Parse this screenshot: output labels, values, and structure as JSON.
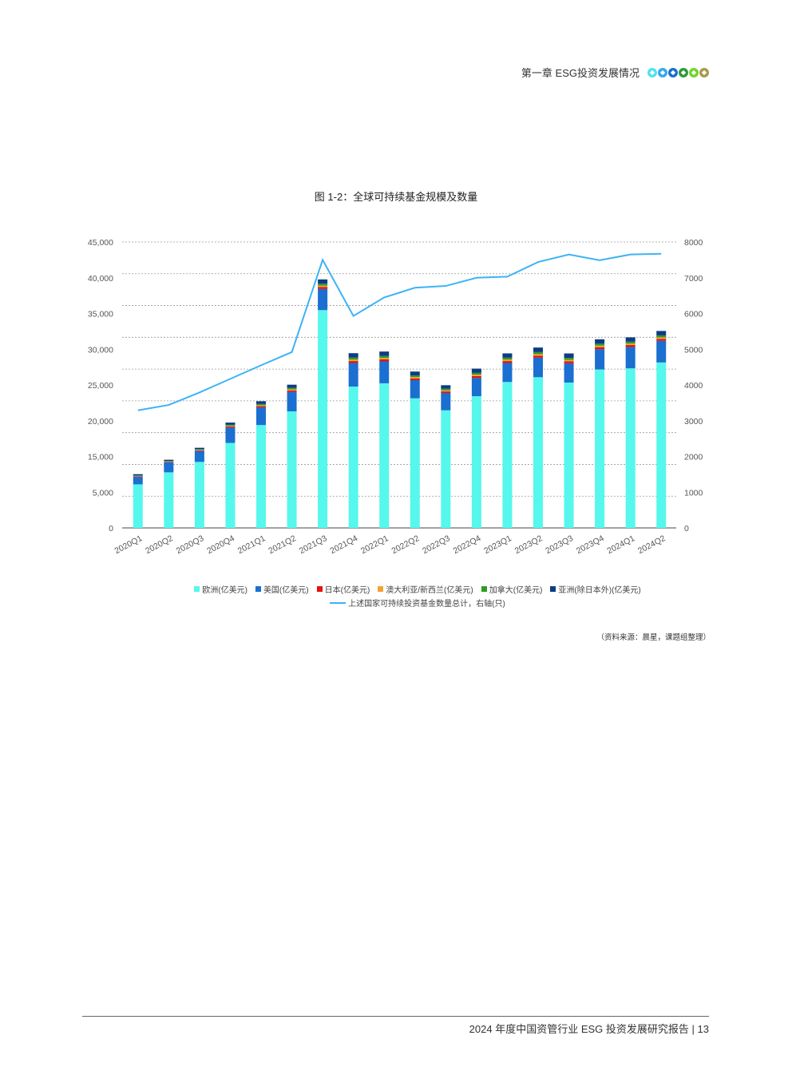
{
  "header": {
    "chapter": "第一章 ESG投资发展情况",
    "dot_colors": [
      "#4fe3f0",
      "#36a9f0",
      "#1a6fd0",
      "#2f9a3a",
      "#6fd62a",
      "#a99a4a"
    ]
  },
  "chart_title": "图 1-2：全球可持续基金规模及数量",
  "chart_data": {
    "type": "bar",
    "stacked": true,
    "title": "图 1-2：全球可持续基金规模及数量",
    "categories": [
      "2020Q1",
      "2020Q2",
      "2020Q3",
      "2020Q4",
      "2021Q1",
      "2021Q2",
      "2021Q3",
      "2021Q4",
      "2022Q1",
      "2022Q2",
      "2022Q3",
      "2022Q4",
      "2023Q1",
      "2023Q2",
      "2023Q3",
      "2023Q4",
      "2024Q1",
      "2024Q2"
    ],
    "left_axis": {
      "ylim": [
        0,
        45000
      ],
      "tick_labels": [
        "0",
        "5,000",
        "15,000",
        "20,000",
        "25,000",
        "30,000",
        "35,000",
        "40,000",
        "45,000"
      ]
    },
    "right_axis": {
      "ylim": [
        0,
        8000
      ],
      "tick_labels": [
        "0",
        "1000",
        "2000",
        "3000",
        "4000",
        "5000",
        "6000",
        "7000",
        "8000"
      ]
    },
    "grid": true,
    "legend_placement": "bottom",
    "series": [
      {
        "name": "欧洲(亿美元)",
        "color": "#56f7ec",
        "values": [
          6860,
          8750,
          10390,
          13380,
          16190,
          18340,
          34280,
          22250,
          22760,
          20400,
          18510,
          20740,
          22970,
          23720,
          22880,
          24940,
          25110,
          26040
        ]
      },
      {
        "name": "美国(亿美元)",
        "color": "#1a6fd0",
        "values": [
          1180,
          1560,
          1720,
          2440,
          2780,
          3070,
          3320,
          3700,
          3450,
          2860,
          2730,
          2860,
          2990,
          3070,
          3030,
          3200,
          3370,
          3410
        ]
      },
      {
        "name": "日本(亿美元)",
        "color": "#e81010",
        "values": [
          80,
          80,
          100,
          150,
          190,
          230,
          300,
          310,
          310,
          270,
          240,
          290,
          300,
          320,
          310,
          310,
          300,
          310
        ]
      },
      {
        "name": "澳大利亚/新西兰(亿美元)",
        "color": "#f5a033",
        "values": [
          60,
          60,
          80,
          110,
          150,
          170,
          230,
          230,
          230,
          200,
          180,
          220,
          230,
          240,
          230,
          230,
          230,
          230
        ]
      },
      {
        "name": "加拿大(亿美元)",
        "color": "#2e9e1e",
        "values": [
          80,
          80,
          100,
          150,
          190,
          230,
          300,
          310,
          310,
          270,
          240,
          290,
          300,
          320,
          310,
          310,
          300,
          310
        ]
      },
      {
        "name": "亚洲(除日本外)(亿美元)",
        "color": "#0d3c84",
        "values": [
          200,
          200,
          225,
          350,
          440,
          500,
          680,
          700,
          700,
          610,
          560,
          670,
          680,
          720,
          700,
          700,
          680,
          700
        ]
      }
    ],
    "line_series": {
      "name": "上述国家可持续投资基金数量总计，右轴(只)",
      "color": "#3db3f5",
      "axis": "right",
      "values": [
        3290,
        3440,
        3790,
        4170,
        4550,
        4920,
        7500,
        5930,
        6450,
        6720,
        6770,
        7000,
        7030,
        7440,
        7650,
        7490,
        7650,
        7670
      ]
    }
  },
  "source": "（资料来源：晨星，课题组整理）",
  "footer": {
    "report_title": "2024 年度中国资管行业 ESG 投资发展研究报告",
    "separator": "|",
    "page_number": "13"
  }
}
